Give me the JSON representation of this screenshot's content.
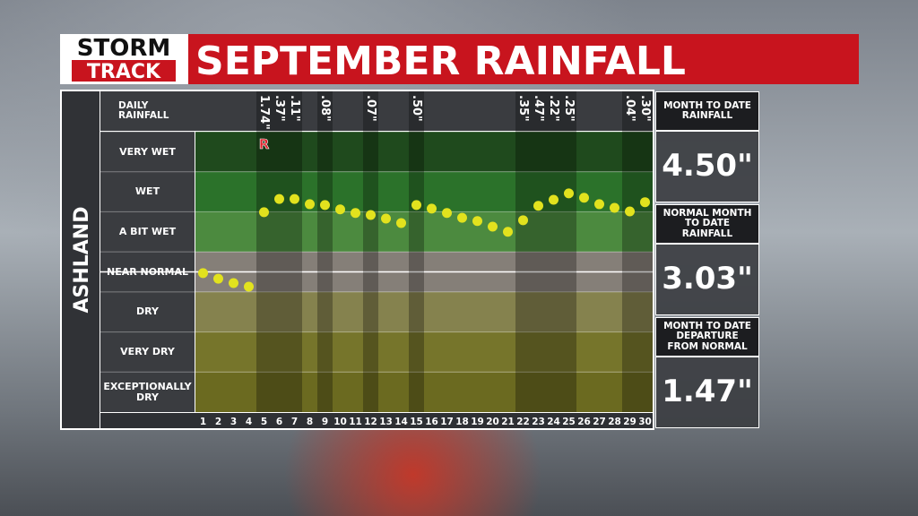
{
  "logo": {
    "line1": "STORM",
    "line2": "TRACK"
  },
  "chart_data": {
    "type": "dot",
    "title": "SEPTEMBER RAINFALL",
    "location": "ASHLAND",
    "rainfall_label": "DAILY RAINFALL",
    "bands": [
      "VERY WET",
      "WET",
      "A BIT WET",
      "NEAR NORMAL",
      "DRY",
      "VERY DRY",
      "EXCEPTIONALLY DRY"
    ],
    "band_colors": [
      "#1f4a1d",
      "#2b722a",
      "#4c8a3f",
      "#857f78",
      "#85824e",
      "#76752b",
      "#6b6a20"
    ],
    "categories": [
      "1",
      "2",
      "3",
      "4",
      "5",
      "6",
      "7",
      "8",
      "9",
      "10",
      "11",
      "12",
      "13",
      "14",
      "15",
      "16",
      "17",
      "18",
      "19",
      "20",
      "21",
      "22",
      "23",
      "24",
      "25",
      "26",
      "27",
      "28",
      "29",
      "30"
    ],
    "values": [
      3.47,
      3.33,
      3.22,
      3.13,
      4.99,
      5.32,
      5.32,
      5.19,
      5.17,
      5.06,
      4.97,
      4.92,
      4.83,
      4.72,
      5.17,
      5.08,
      4.97,
      4.85,
      4.77,
      4.63,
      4.5,
      4.79,
      5.15,
      5.3,
      5.46,
      5.35,
      5.19,
      5.1,
      5.01,
      5.24
    ],
    "color": "#e2e21e",
    "ylim": [
      0,
      7
    ],
    "rainfall": {
      "values": [
        null,
        null,
        null,
        null,
        1.74,
        0.37,
        0.11,
        null,
        0.08,
        null,
        null,
        0.07,
        null,
        null,
        0.5,
        null,
        null,
        null,
        null,
        null,
        null,
        0.35,
        0.47,
        0.22,
        0.25,
        null,
        null,
        null,
        0.04,
        0.3
      ],
      "value_labels": [
        null,
        null,
        null,
        null,
        "1.74\"",
        ".37\"",
        ".11\"",
        null,
        ".08\"",
        null,
        null,
        ".07\"",
        null,
        null,
        ".50\"",
        null,
        null,
        null,
        null,
        null,
        null,
        ".35\"",
        ".47\"",
        ".22\"",
        ".25\"",
        null,
        null,
        null,
        ".04\"",
        ".30\""
      ]
    },
    "annotation": {
      "text": "R",
      "category": "5"
    }
  },
  "stats": [
    {
      "label": "MONTH TO DATE RAINFALL",
      "value": "4.50\""
    },
    {
      "label": "NORMAL MONTH TO DATE RAINFALL",
      "value": "3.03\""
    },
    {
      "label": "MONTH TO DATE DEPARTURE FROM NORMAL",
      "value": "1.47\""
    }
  ]
}
